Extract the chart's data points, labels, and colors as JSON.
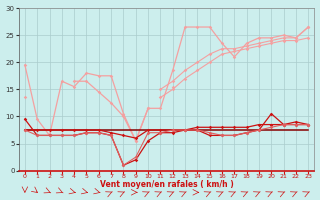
{
  "x": [
    0,
    1,
    2,
    3,
    4,
    5,
    6,
    7,
    8,
    9,
    10,
    11,
    12,
    13,
    14,
    15,
    16,
    17,
    18,
    19,
    20,
    21,
    22,
    23
  ],
  "rafales_top": [
    19.5,
    9.5,
    6.5,
    16.5,
    15.5,
    18.0,
    17.5,
    17.5,
    10.5,
    5.5,
    11.5,
    11.5,
    18.5,
    26.5,
    26.5,
    26.5,
    23.5,
    21.0,
    23.5,
    24.5,
    24.5,
    25.0,
    24.5,
    26.5
  ],
  "rafales_mid": [
    13.5,
    null,
    null,
    null,
    16.5,
    16.5,
    14.5,
    12.5,
    10.0,
    5.5,
    11.5,
    null,
    15.5,
    null,
    null,
    null,
    null,
    null,
    null,
    null,
    null,
    null,
    null,
    null
  ],
  "rafales_env1": [
    null,
    null,
    null,
    null,
    null,
    null,
    null,
    null,
    null,
    null,
    null,
    15.0,
    16.5,
    18.5,
    20.0,
    21.5,
    22.5,
    22.5,
    23.0,
    23.5,
    24.0,
    24.5,
    24.5,
    26.5
  ],
  "rafales_env2": [
    null,
    null,
    null,
    null,
    null,
    null,
    null,
    null,
    null,
    null,
    null,
    13.5,
    15.0,
    17.0,
    18.5,
    20.0,
    21.5,
    22.0,
    22.5,
    23.0,
    23.5,
    24.0,
    24.0,
    24.5
  ],
  "vent_flat": [
    7.5,
    7.5,
    7.5,
    7.5,
    7.5,
    7.5,
    7.5,
    7.5,
    7.5,
    7.5,
    7.5,
    7.5,
    7.5,
    7.5,
    7.5,
    7.5,
    7.5,
    7.5,
    7.5,
    7.5,
    7.5,
    7.5,
    7.5,
    7.5
  ],
  "vent_max": [
    7.5,
    7.5,
    7.5,
    7.5,
    7.5,
    7.5,
    7.5,
    7.0,
    6.5,
    6.0,
    7.5,
    7.5,
    7.5,
    7.5,
    8.0,
    8.0,
    8.0,
    8.0,
    8.0,
    8.5,
    8.5,
    8.5,
    9.0,
    8.5
  ],
  "vent_dip1": [
    9.5,
    6.5,
    6.5,
    6.5,
    6.5,
    7.0,
    7.0,
    6.5,
    1.0,
    2.0,
    5.5,
    7.0,
    7.0,
    7.5,
    7.5,
    6.5,
    6.5,
    6.5,
    7.0,
    7.5,
    10.5,
    8.5,
    8.5,
    8.5
  ],
  "vent_dip2": [
    7.5,
    6.5,
    6.5,
    6.5,
    6.5,
    7.0,
    7.0,
    6.5,
    1.0,
    2.5,
    7.0,
    7.0,
    7.5,
    7.5,
    7.5,
    7.0,
    6.5,
    6.5,
    7.0,
    7.5,
    8.0,
    8.5,
    8.5,
    8.5
  ],
  "wind_dirs": [
    0,
    30,
    45,
    45,
    60,
    60,
    60,
    135,
    135,
    90,
    135,
    135,
    135,
    135,
    90,
    135,
    135,
    135,
    135,
    135,
    135,
    135,
    135,
    135
  ],
  "ylim": [
    0,
    30
  ],
  "yticks": [
    0,
    5,
    10,
    15,
    20,
    25,
    30
  ],
  "xticks": [
    0,
    1,
    2,
    3,
    4,
    5,
    6,
    7,
    8,
    9,
    10,
    11,
    12,
    13,
    14,
    15,
    16,
    17,
    18,
    19,
    20,
    21,
    22,
    23
  ],
  "xlabel": "Vent moyen/en rafales ( km/h )",
  "bg_color": "#cceeed",
  "grid_color": "#aacccc",
  "c_light": "#f4a0a0",
  "c_med": "#e06060",
  "c_dark": "#cc1111",
  "c_vdark": "#880000"
}
